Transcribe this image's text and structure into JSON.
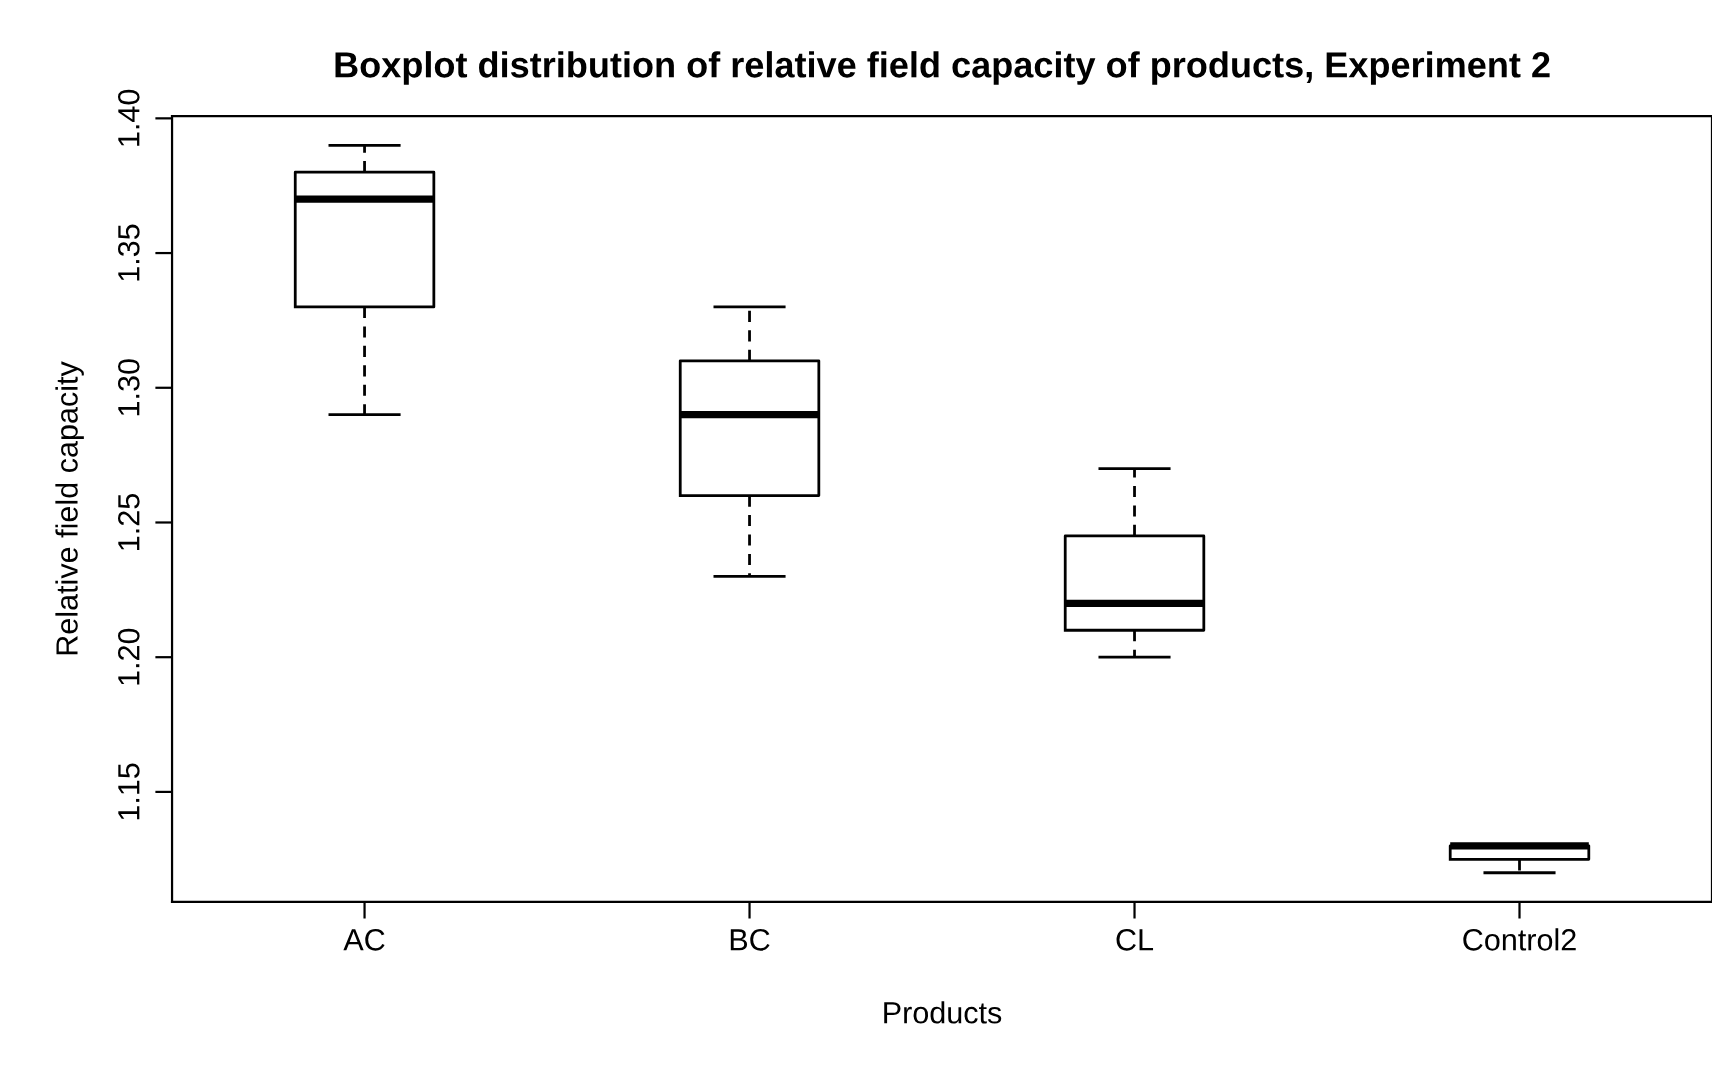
{
  "chart_data": {
    "type": "box",
    "title": "Boxplot distribution of relative field capacity of products, Experiment 2",
    "xlabel": "Products",
    "ylabel": "Relative field capacity",
    "categories": [
      "AC",
      "BC",
      "CL",
      "Control2"
    ],
    "boxes": [
      {
        "low": 1.29,
        "q1": 1.33,
        "median": 1.37,
        "q3": 1.38,
        "high": 1.39
      },
      {
        "low": 1.23,
        "q1": 1.26,
        "median": 1.29,
        "q3": 1.31,
        "high": 1.33
      },
      {
        "low": 1.2,
        "q1": 1.21,
        "median": 1.22,
        "q3": 1.245,
        "high": 1.27
      },
      {
        "low": 1.12,
        "q1": 1.125,
        "median": 1.13,
        "q3": 1.13,
        "high": 1.13
      }
    ],
    "ylim": [
      1.1092,
      1.4008
    ],
    "yticks": [
      {
        "value": 1.15,
        "label": "1.15"
      },
      {
        "value": 1.2,
        "label": "1.20"
      },
      {
        "value": 1.25,
        "label": "1.25"
      },
      {
        "value": 1.3,
        "label": "1.30"
      },
      {
        "value": 1.35,
        "label": "1.35"
      },
      {
        "value": 1.4,
        "label": "1.40"
      }
    ],
    "grid": false
  }
}
